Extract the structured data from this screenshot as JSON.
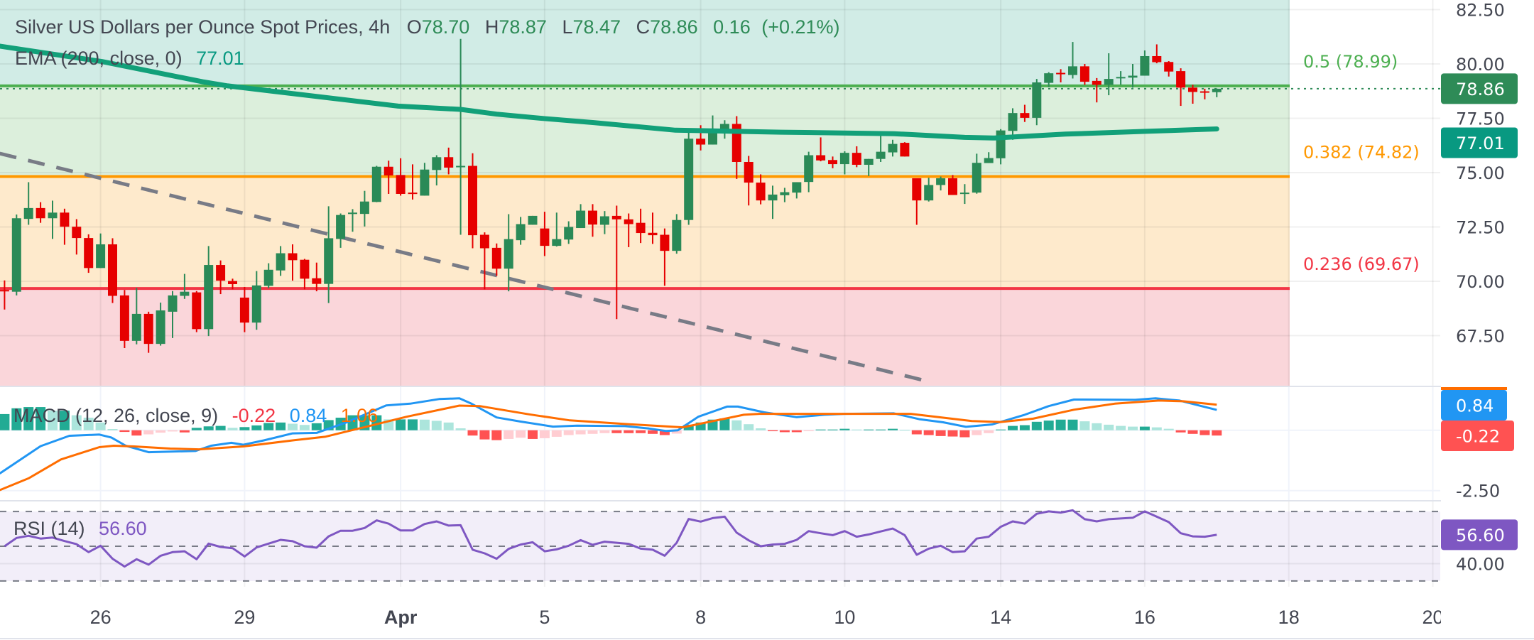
{
  "header": {
    "symbol_title": "Silver US Dollars per Ounce Spot Prices, 4h",
    "o_label": "O",
    "o": "78.70",
    "h_label": "H",
    "h": "78.87",
    "l_label": "L",
    "l": "78.47",
    "c_label": "C",
    "c": "78.86",
    "change": "0.16",
    "change_pct": "(+0.21%)"
  },
  "ema_legend": {
    "label": "EMA (200, close, 0)",
    "value": "77.01"
  },
  "macd_legend": {
    "label": "MACD (12, 26, close, 9)",
    "hist": "-0.22",
    "macd": "0.84",
    "signal": "1.06"
  },
  "rsi_legend": {
    "label": "RSI (14)",
    "value": "56.60"
  },
  "fib_levels": [
    {
      "label": "0.5 (78.99)",
      "ratio": 0.5,
      "price": 78.99,
      "color": "#4caf50",
      "zone_color": "#dcefdc"
    },
    {
      "label": "0.382 (74.82)",
      "ratio": 0.382,
      "price": 74.82,
      "color": "#ff9800",
      "zone_color": "#feeacc"
    },
    {
      "label": "0.236 (69.67)",
      "ratio": 0.236,
      "price": 69.67,
      "color": "#f23645",
      "zone_color": "#fad6da"
    }
  ],
  "fib_top_zone_color": "#d1ece6",
  "price_axis": {
    "labels": [
      {
        "text": "82.50",
        "value": 82.5
      },
      {
        "text": "80.00",
        "value": 80
      },
      {
        "text": "77.50",
        "value": 77.5
      },
      {
        "text": "75.00",
        "value": 75
      },
      {
        "text": "72.50",
        "value": 72.5
      },
      {
        "text": "70.00",
        "value": 70
      },
      {
        "text": "67.50",
        "value": 67.5
      }
    ],
    "last_badge": "78.86",
    "ema_badge": "77.01"
  },
  "macd_axis": {
    "labels": [
      {
        "text": "-2.50",
        "value": -2.5
      }
    ],
    "macd_badge": "0.84",
    "hist_badge": "-0.22"
  },
  "rsi_axis": {
    "labels": [
      {
        "text": "40.00",
        "value": 40
      }
    ],
    "rsi_badge": "56.60",
    "bands": [
      70,
      50,
      30
    ]
  },
  "time_axis": {
    "ticks": [
      {
        "label": "26",
        "bar": 8
      },
      {
        "label": "29",
        "bar": 20
      },
      {
        "label": "Apr",
        "bar": 33,
        "bold": true
      },
      {
        "label": "5",
        "bar": 45
      },
      {
        "label": "8",
        "bar": 58
      },
      {
        "label": "10",
        "bar": 70
      },
      {
        "label": "14",
        "bar": 83
      },
      {
        "label": "16",
        "bar": 95
      },
      {
        "label": "18",
        "bar": 107
      },
      {
        "label": "20",
        "bar": 119
      }
    ]
  },
  "colors": {
    "up": "#2a8a57",
    "down": "#e60000",
    "ema": "#12a079",
    "last_price": "#2e8b57",
    "ema_badge": "#089981",
    "macd": "#2196f3",
    "signal": "#ff6d00",
    "hist_up_strong": "#22ab94",
    "hist_up_weak": "#ace5dc",
    "hist_down_strong": "#ff5252",
    "hist_down_weak": "#ffcdd2",
    "rsi": "#7e57c2",
    "trendline": "#787b86",
    "text": "#434651"
  },
  "chart_data": {
    "type": "candlestick",
    "interval": "4h",
    "price_range": [
      65.2,
      82.9
    ],
    "candles_ohlc": [
      [
        69.6,
        70.04,
        68.7,
        69.57
      ],
      [
        69.52,
        73.07,
        69.35,
        72.9
      ],
      [
        72.87,
        74.56,
        72.6,
        73.37
      ],
      [
        73.37,
        73.64,
        72.69,
        72.9
      ],
      [
        72.9,
        73.71,
        71.95,
        73.16
      ],
      [
        73.16,
        73.34,
        71.68,
        72.51
      ],
      [
        72.51,
        72.86,
        71.23,
        71.99
      ],
      [
        71.99,
        72.16,
        70.39,
        70.61
      ],
      [
        70.61,
        72.2,
        70.61,
        71.7
      ],
      [
        71.7,
        71.98,
        69.0,
        69.33
      ],
      [
        69.35,
        69.6,
        66.93,
        67.26
      ],
      [
        67.26,
        69.7,
        67.1,
        68.5
      ],
      [
        68.5,
        68.6,
        66.71,
        67.12
      ],
      [
        67.12,
        69.02,
        67.04,
        68.66
      ],
      [
        68.6,
        69.55,
        67.39,
        69.35
      ],
      [
        69.33,
        70.34,
        69.19,
        69.52
      ],
      [
        69.49,
        69.55,
        67.66,
        67.8
      ],
      [
        67.8,
        71.62,
        67.48,
        70.75
      ],
      [
        70.75,
        70.96,
        69.41,
        70.03
      ],
      [
        70.01,
        70.12,
        69.63,
        69.87
      ],
      [
        69.25,
        69.74,
        67.66,
        68.1
      ],
      [
        68.1,
        70.47,
        67.77,
        69.81
      ],
      [
        69.79,
        70.83,
        69.68,
        70.53
      ],
      [
        70.5,
        71.62,
        70.25,
        71.29
      ],
      [
        71.29,
        71.7,
        70.03,
        70.97
      ],
      [
        70.99,
        71.03,
        69.63,
        70.12
      ],
      [
        70.14,
        70.86,
        69.54,
        69.88
      ],
      [
        69.88,
        73.45,
        69.0,
        71.98
      ],
      [
        71.95,
        73.12,
        71.54,
        73.05
      ],
      [
        73.12,
        73.32,
        72.28,
        73.16
      ],
      [
        73.1,
        74.16,
        72.52,
        73.67
      ],
      [
        73.65,
        75.31,
        73.64,
        75.27
      ],
      [
        75.27,
        75.55,
        74.02,
        74.87
      ],
      [
        74.89,
        75.66,
        73.94,
        74.02
      ],
      [
        74.08,
        75.38,
        73.76,
        74.05
      ],
      [
        73.94,
        75.45,
        73.94,
        75.14
      ],
      [
        75.12,
        75.8,
        74.41,
        75.71
      ],
      [
        75.71,
        76.15,
        74.92,
        75.23
      ],
      [
        75.27,
        81.15,
        72.14,
        75.31
      ],
      [
        75.31,
        75.89,
        71.52,
        72.12
      ],
      [
        72.14,
        72.25,
        69.63,
        71.52
      ],
      [
        71.54,
        71.74,
        70.25,
        70.58
      ],
      [
        70.58,
        73.09,
        69.54,
        71.94
      ],
      [
        71.89,
        72.96,
        71.68,
        72.63
      ],
      [
        72.6,
        73.01,
        72.6,
        73.01
      ],
      [
        72.43,
        73.2,
        71.16,
        71.63
      ],
      [
        71.63,
        73.16,
        71.6,
        71.94
      ],
      [
        71.92,
        72.76,
        71.72,
        72.5
      ],
      [
        72.45,
        73.55,
        72.45,
        73.25
      ],
      [
        73.25,
        73.55,
        72.05,
        72.61
      ],
      [
        72.6,
        73.23,
        72.17,
        72.99
      ],
      [
        73.01,
        73.48,
        68.26,
        72.85
      ],
      [
        72.85,
        73.12,
        71.57,
        72.63
      ],
      [
        72.69,
        73.34,
        71.76,
        72.22
      ],
      [
        72.23,
        73.16,
        71.72,
        72.12
      ],
      [
        72.14,
        72.43,
        69.79,
        71.4
      ],
      [
        71.4,
        73.09,
        71.27,
        72.82
      ],
      [
        72.82,
        76.89,
        72.6,
        76.56
      ],
      [
        76.56,
        77.18,
        76.02,
        76.29
      ],
      [
        76.29,
        77.63,
        76.29,
        76.98
      ],
      [
        76.98,
        77.41,
        76.56,
        77.24
      ],
      [
        77.24,
        77.6,
        74.71,
        75.49
      ],
      [
        75.49,
        75.77,
        73.49,
        74.54
      ],
      [
        74.54,
        74.92,
        73.54,
        73.72
      ],
      [
        73.72,
        74.4,
        72.87,
        73.99
      ],
      [
        73.96,
        74.3,
        73.64,
        74.1
      ],
      [
        74.08,
        74.56,
        73.81,
        74.56
      ],
      [
        74.57,
        75.96,
        74.1,
        75.8
      ],
      [
        75.8,
        76.62,
        75.52,
        75.56
      ],
      [
        75.58,
        75.74,
        75.2,
        75.39
      ],
      [
        75.39,
        75.98,
        74.92,
        75.91
      ],
      [
        75.91,
        76.21,
        75.25,
        75.36
      ],
      [
        75.36,
        75.63,
        74.84,
        75.63
      ],
      [
        75.63,
        76.81,
        75.49,
        75.96
      ],
      [
        75.93,
        76.51,
        75.74,
        76.32
      ],
      [
        76.37,
        76.4,
        75.74,
        75.74
      ],
      [
        74.74,
        74.74,
        72.6,
        73.72
      ],
      [
        73.72,
        74.76,
        73.67,
        74.43
      ],
      [
        74.43,
        74.82,
        74.18,
        74.74
      ],
      [
        74.74,
        74.89,
        73.97,
        73.97
      ],
      [
        74.05,
        74.47,
        73.56,
        74.08
      ],
      [
        74.08,
        75.87,
        74.03,
        75.45
      ],
      [
        75.44,
        75.94,
        75.44,
        75.67
      ],
      [
        75.66,
        77.0,
        75.38,
        76.94
      ],
      [
        76.92,
        77.96,
        76.51,
        77.74
      ],
      [
        77.74,
        78.12,
        77.33,
        77.52
      ],
      [
        77.52,
        79.31,
        77.18,
        79.15
      ],
      [
        79.13,
        79.62,
        78.93,
        79.57
      ],
      [
        79.59,
        79.76,
        79.15,
        79.57
      ],
      [
        79.49,
        81.01,
        79.33,
        79.89
      ],
      [
        79.89,
        80.0,
        79.04,
        79.18
      ],
      [
        79.22,
        79.35,
        78.23,
        79.04
      ],
      [
        79.04,
        80.49,
        78.56,
        79.31
      ],
      [
        79.38,
        79.67,
        79.04,
        79.4
      ],
      [
        79.37,
        80.0,
        78.91,
        79.46
      ],
      [
        79.46,
        80.62,
        79.46,
        80.36
      ],
      [
        80.36,
        80.9,
        80.03,
        80.08
      ],
      [
        80.09,
        80.13,
        79.42,
        79.65
      ],
      [
        79.67,
        79.8,
        78.07,
        78.91
      ],
      [
        78.91,
        79.04,
        78.17,
        78.71
      ],
      [
        78.74,
        78.86,
        78.37,
        78.71
      ],
      [
        78.7,
        78.87,
        78.47,
        78.86
      ]
    ],
    "ema200_points": [
      [
        -0.4,
        80.82
      ],
      [
        8.1,
        80.11
      ],
      [
        16.5,
        79.18
      ],
      [
        18.6,
        78.99
      ],
      [
        32.8,
        78.06
      ],
      [
        38,
        77.91
      ],
      [
        41,
        77.69
      ],
      [
        44.9,
        77.49
      ],
      [
        49.1,
        77.3
      ],
      [
        55.9,
        76.95
      ],
      [
        64.7,
        76.86
      ],
      [
        74.1,
        76.79
      ],
      [
        80,
        76.62
      ],
      [
        82.5,
        76.59
      ],
      [
        88.4,
        76.77
      ],
      [
        95.1,
        76.9
      ],
      [
        101,
        77.01
      ]
    ],
    "trendline": [
      [
        -0.4,
        75.88
      ],
      [
        76.9,
        65.4
      ]
    ],
    "macd": {
      "range": [
        -2.9,
        1.8
      ],
      "macd_points": [
        [
          -0.4,
          -1.79
        ],
        [
          3,
          -0.66
        ],
        [
          5.4,
          -0.23
        ],
        [
          7.9,
          -0.18
        ],
        [
          8.9,
          -0.3
        ],
        [
          10.1,
          -0.64
        ],
        [
          12,
          -0.91
        ],
        [
          15.9,
          -0.86
        ],
        [
          17.2,
          -0.64
        ],
        [
          18.9,
          -0.52
        ],
        [
          19.9,
          -0.6
        ],
        [
          21.6,
          -0.42
        ],
        [
          24,
          -0.13
        ],
        [
          26,
          -0.11
        ],
        [
          28.4,
          0.31
        ],
        [
          31.8,
          1.03
        ],
        [
          33.8,
          1.1
        ],
        [
          36.2,
          1.29
        ],
        [
          37.9,
          1.32
        ],
        [
          38.9,
          1.1
        ],
        [
          41,
          0.53
        ],
        [
          43,
          0.36
        ],
        [
          45.7,
          0.15
        ],
        [
          47.7,
          0.19
        ],
        [
          51.7,
          0.17
        ],
        [
          53.7,
          0.07
        ],
        [
          55.1,
          -0.03
        ],
        [
          56.1,
          0
        ],
        [
          57.8,
          0.56
        ],
        [
          60.2,
          0.98
        ],
        [
          61.1,
          0.98
        ],
        [
          63.3,
          0.74
        ],
        [
          66,
          0.54
        ],
        [
          68.3,
          0.64
        ],
        [
          70,
          0.68
        ],
        [
          74.1,
          0.7
        ],
        [
          76.2,
          0.46
        ],
        [
          78.2,
          0.33
        ],
        [
          80.1,
          0.14
        ],
        [
          82.3,
          0.24
        ],
        [
          85,
          0.64
        ],
        [
          87,
          1.0
        ],
        [
          89.1,
          1.27
        ],
        [
          94.2,
          1.26
        ],
        [
          95.9,
          1.32
        ],
        [
          97.9,
          1.23
        ],
        [
          99.9,
          0.98
        ],
        [
          101,
          0.84
        ]
      ],
      "signal_points": [
        [
          -0.4,
          -2.48
        ],
        [
          2,
          -1.99
        ],
        [
          4.7,
          -1.21
        ],
        [
          7.9,
          -0.7
        ],
        [
          9.1,
          -0.64
        ],
        [
          10.8,
          -0.67
        ],
        [
          13.8,
          -0.76
        ],
        [
          16.2,
          -0.79
        ],
        [
          19.9,
          -0.67
        ],
        [
          24,
          -0.42
        ],
        [
          26.7,
          -0.27
        ],
        [
          30.1,
          0.14
        ],
        [
          33.5,
          0.56
        ],
        [
          37.9,
          1.02
        ],
        [
          39.6,
          1.0
        ],
        [
          43.7,
          0.66
        ],
        [
          47.1,
          0.41
        ],
        [
          51.7,
          0.26
        ],
        [
          56.5,
          0.12
        ],
        [
          61.6,
          0.64
        ],
        [
          62.9,
          0.68
        ],
        [
          75.5,
          0.68
        ],
        [
          80.6,
          0.38
        ],
        [
          83,
          0.34
        ],
        [
          85.7,
          0.48
        ],
        [
          89.1,
          0.85
        ],
        [
          92.5,
          1.1
        ],
        [
          96.2,
          1.23
        ],
        [
          98.2,
          1.2
        ],
        [
          101,
          1.06
        ]
      ],
      "histogram": [
        0.67,
        0.91,
        0.96,
        0.96,
        0.81,
        0.81,
        0.62,
        0.52,
        0.32,
        0.05,
        -0.07,
        -0.22,
        -0.17,
        -0.1,
        -0.05,
        -0.09,
        0.1,
        0.16,
        0.18,
        0.1,
        0.13,
        0.2,
        0.3,
        0.32,
        0.27,
        0.22,
        0.29,
        0.42,
        0.52,
        0.62,
        0.62,
        0.62,
        0.45,
        0.45,
        0.45,
        0.44,
        0.39,
        0.32,
        0.08,
        -0.22,
        -0.38,
        -0.41,
        -0.36,
        -0.31,
        -0.36,
        -0.33,
        -0.27,
        -0.2,
        -0.17,
        -0.15,
        -0.12,
        -0.12,
        -0.12,
        -0.12,
        -0.15,
        -0.2,
        -0.14,
        0.23,
        0.32,
        0.44,
        0.49,
        0.41,
        0.25,
        0.08,
        -0.04,
        -0.08,
        -0.08,
        -0.04,
        0.03,
        0.03,
        0.06,
        0.03,
        0.03,
        0.03,
        0.06,
        0.02,
        -0.17,
        -0.2,
        -0.24,
        -0.26,
        -0.29,
        -0.2,
        -0.12,
        0.03,
        0.18,
        0.21,
        0.35,
        0.4,
        0.44,
        0.44,
        0.37,
        0.29,
        0.23,
        0.18,
        0.15,
        0.15,
        0.12,
        0.06,
        -0.09,
        -0.15,
        -0.2,
        -0.22
      ]
    },
    "rsi": {
      "range": [
        25,
        75
      ],
      "values": [
        50,
        54.8,
        56,
        54.4,
        55,
        53,
        51.2,
        46.6,
        50.3,
        42.8,
        38.3,
        42.5,
        39.4,
        44.5,
        46.6,
        47.1,
        42.5,
        51.5,
        49.6,
        48.9,
        44.1,
        49.3,
        51.5,
        53.7,
        52.9,
        50,
        49.2,
        55.7,
        58.9,
        58.9,
        60.5,
        64.9,
        63,
        59.1,
        59.1,
        62.8,
        64.3,
        61.9,
        62.1,
        48,
        45.9,
        42.8,
        48.5,
        51,
        52.3,
        47.1,
        48.2,
        50.3,
        53.5,
        50.8,
        52.6,
        52,
        51.4,
        48.6,
        48,
        44.5,
        52,
        65.7,
        64.2,
        66.2,
        67,
        57.8,
        53.4,
        50,
        51,
        51.4,
        53.7,
        58.7,
        57.5,
        56.4,
        58.7,
        55.5,
        56.8,
        58.5,
        60.2,
        56.4,
        45.1,
        48.6,
        50.3,
        46.6,
        47.1,
        54.4,
        55.5,
        61.2,
        64.3,
        63,
        68.7,
        70.1,
        69.4,
        70.7,
        65.6,
        64.3,
        65.6,
        66,
        66.4,
        70.1,
        67,
        63.9,
        57.5,
        55.7,
        55.5,
        56.6
      ]
    }
  }
}
